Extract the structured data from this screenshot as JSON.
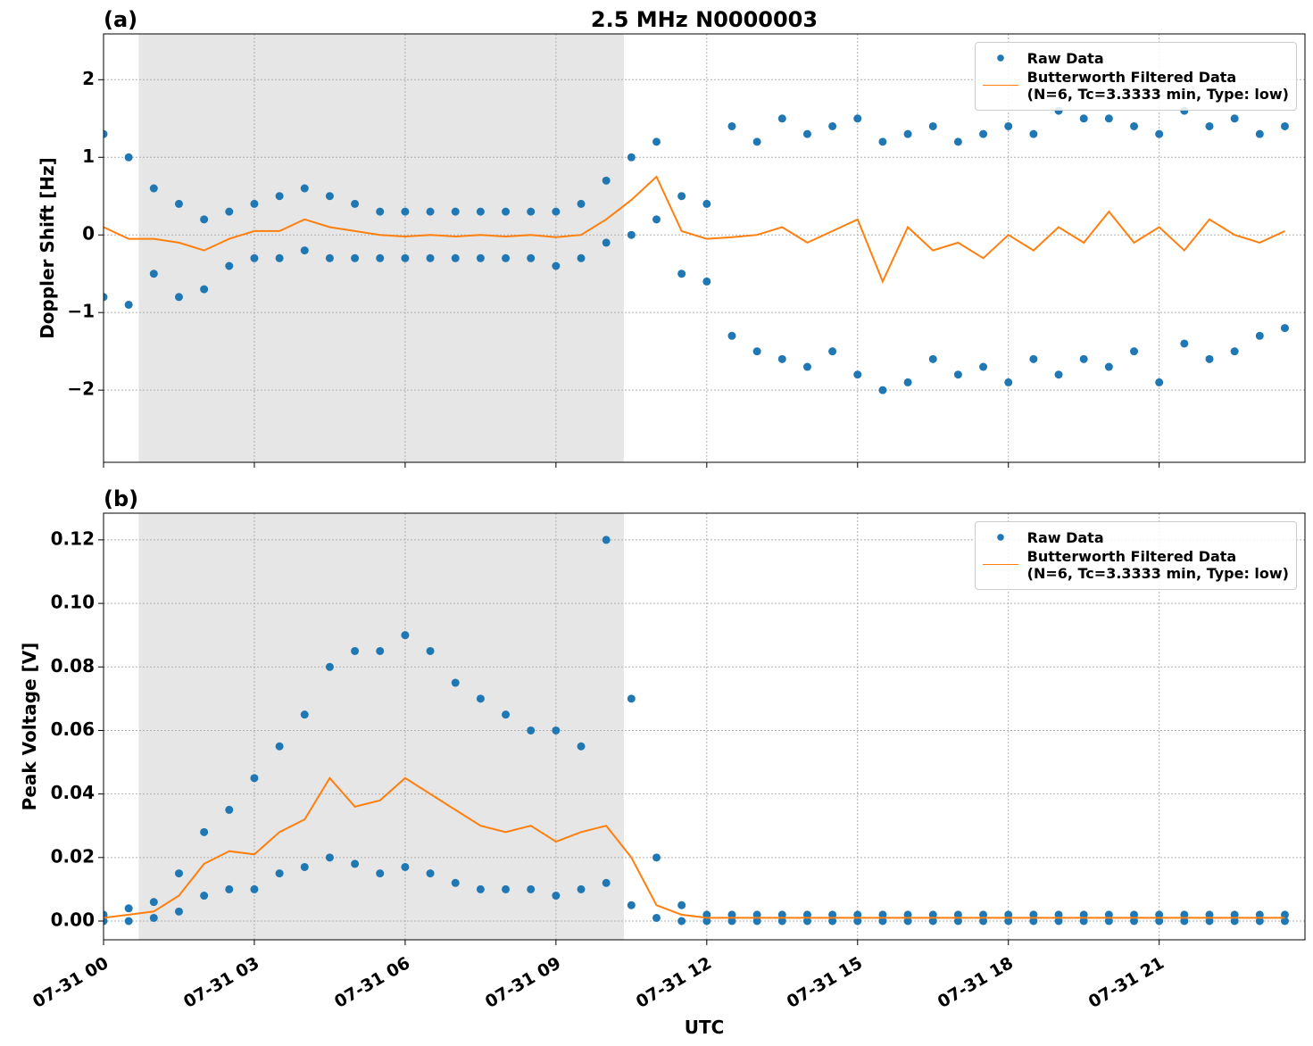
{
  "chart_data": [
    {
      "type": "scatter-line",
      "title": "2.5 MHz N0000003",
      "panel_label": "(a)",
      "y_label": "Doppler Shift [Hz]",
      "xlim": [
        0,
        23.9
      ],
      "ylim": [
        -2.93,
        2.59
      ],
      "xticks": [
        0,
        3,
        6,
        9,
        12,
        15,
        18,
        21
      ],
      "yticks": [
        {
          "value": -2,
          "label": "−2"
        },
        {
          "value": -1,
          "label": "−1"
        },
        0,
        1,
        2
      ],
      "grid": true,
      "shade": [
        0.7,
        10.35
      ],
      "legend": "upper right",
      "series": [
        {
          "name": "Raw Data",
          "color": "#1f77b4",
          "kind": "scatter",
          "x": [
            0,
            0.5,
            1,
            1.5,
            2,
            2.5,
            3,
            3.5,
            4,
            4.5,
            5,
            5.5,
            6,
            6.5,
            7,
            7.5,
            8,
            8.5,
            9,
            9.5,
            10,
            10.5,
            11,
            11.5,
            12,
            12.5,
            13,
            13.5,
            14,
            14.5,
            15,
            15.5,
            16,
            16.5,
            17,
            17.5,
            18,
            18.5,
            19,
            19.5,
            20,
            20.5,
            21,
            21.5,
            22,
            22.5,
            23,
            23.5,
            0,
            0.5,
            1,
            1.5,
            2,
            2.5,
            3,
            3.5,
            4,
            4.5,
            5,
            5.5,
            6,
            6.5,
            7,
            7.5,
            8,
            8.5,
            9,
            9.5,
            10,
            10.5,
            11,
            11.5,
            12,
            12.5,
            13,
            13.5,
            14,
            14.5,
            15,
            15.5,
            16,
            16.5,
            17,
            17.5,
            18,
            18.5,
            19,
            19.5,
            20,
            20.5,
            21,
            21.5,
            22,
            22.5,
            23,
            23.5
          ],
          "values": [
            1.3,
            1.0,
            0.6,
            0.4,
            0.2,
            0.3,
            0.4,
            0.5,
            0.6,
            0.5,
            0.4,
            0.3,
            0.3,
            0.3,
            0.3,
            0.3,
            0.3,
            0.3,
            0.3,
            0.4,
            0.7,
            1.0,
            1.2,
            0.5,
            0.4,
            1.4,
            1.2,
            1.5,
            1.3,
            1.4,
            1.5,
            1.2,
            1.3,
            1.4,
            1.2,
            1.3,
            1.4,
            1.3,
            1.6,
            1.5,
            1.5,
            1.4,
            1.3,
            1.6,
            1.4,
            1.5,
            1.3,
            1.4,
            -0.8,
            -0.9,
            -0.5,
            -0.8,
            -0.7,
            -0.4,
            -0.3,
            -0.3,
            -0.2,
            -0.3,
            -0.3,
            -0.3,
            -0.3,
            -0.3,
            -0.3,
            -0.3,
            -0.3,
            -0.3,
            -0.4,
            -0.3,
            -0.1,
            0.0,
            0.2,
            -0.5,
            -0.6,
            -1.3,
            -1.5,
            -1.6,
            -1.7,
            -1.5,
            -1.8,
            -2.0,
            -1.9,
            -1.6,
            -1.8,
            -1.7,
            -1.9,
            -1.6,
            -1.8,
            -1.6,
            -1.7,
            -1.5,
            -1.9,
            -1.4,
            -1.6,
            -1.5,
            -1.3,
            -1.2
          ]
        },
        {
          "name": "Butterworth Filtered Data\n(N=6, Tc=3.3333 min, Type: low)",
          "color": "#ff7f0e",
          "kind": "line",
          "x": [
            0,
            0.5,
            1,
            1.5,
            2,
            2.5,
            3,
            3.5,
            4,
            4.5,
            5,
            5.5,
            6,
            6.5,
            7,
            7.5,
            8,
            8.5,
            9,
            9.5,
            10,
            10.5,
            11,
            11.5,
            12,
            12.5,
            13,
            13.5,
            14,
            14.5,
            15,
            15.5,
            16,
            16.5,
            17,
            17.5,
            18,
            18.5,
            19,
            19.5,
            20,
            20.5,
            21,
            21.5,
            22,
            22.5,
            23,
            23.5
          ],
          "values": [
            0.1,
            -0.05,
            -0.05,
            -0.1,
            -0.2,
            -0.05,
            0.05,
            0.05,
            0.2,
            0.1,
            0.05,
            0.0,
            -0.02,
            0.0,
            -0.02,
            0.0,
            -0.02,
            0.0,
            -0.03,
            0.0,
            0.2,
            0.45,
            0.75,
            0.05,
            -0.05,
            -0.03,
            0.0,
            0.1,
            -0.1,
            0.05,
            0.2,
            -0.6,
            0.1,
            -0.2,
            -0.1,
            -0.3,
            0.0,
            -0.2,
            0.1,
            -0.1,
            0.3,
            -0.1,
            0.1,
            -0.2,
            0.2,
            0.0,
            -0.1,
            0.05
          ]
        }
      ]
    },
    {
      "type": "scatter-line",
      "panel_label": "(b)",
      "y_label": "Peak Voltage [V]",
      "x_label": "UTC",
      "xlim": [
        0,
        23.9
      ],
      "ylim": [
        -0.0059,
        0.1284
      ],
      "xticks": [
        {
          "value": 0,
          "label": "07-31 00"
        },
        {
          "value": 3,
          "label": "07-31 03"
        },
        {
          "value": 6,
          "label": "07-31 06"
        },
        {
          "value": 9,
          "label": "07-31 09"
        },
        {
          "value": 12,
          "label": "07-31 12"
        },
        {
          "value": 15,
          "label": "07-31 15"
        },
        {
          "value": 18,
          "label": "07-31 18"
        },
        {
          "value": 21,
          "label": "07-31 21"
        }
      ],
      "yticks": [
        {
          "value": 0,
          "label": "0.00"
        },
        {
          "value": 0.02,
          "label": "0.02"
        },
        {
          "value": 0.04,
          "label": "0.04"
        },
        {
          "value": 0.06,
          "label": "0.06"
        },
        {
          "value": 0.08,
          "label": "0.08"
        },
        {
          "value": 0.1,
          "label": "0.10"
        },
        {
          "value": 0.12,
          "label": "0.12"
        }
      ],
      "grid": true,
      "shade": [
        0.7,
        10.35
      ],
      "legend": "upper right",
      "series": [
        {
          "name": "Raw Data",
          "color": "#1f77b4",
          "kind": "scatter",
          "x": [
            0,
            0.5,
            1,
            1.5,
            2,
            2.5,
            3,
            3.5,
            4,
            4.5,
            5,
            5.5,
            6,
            6.5,
            7,
            7.5,
            8,
            8.5,
            9,
            9.5,
            10,
            10.5,
            11,
            11.5,
            12,
            12.5,
            13,
            13.5,
            14,
            14.5,
            15,
            15.5,
            16,
            16.5,
            17,
            17.5,
            18,
            18.5,
            19,
            19.5,
            20,
            20.5,
            21,
            21.5,
            22,
            22.5,
            23,
            23.5,
            0,
            0.5,
            1,
            1.5,
            2,
            2.5,
            3,
            3.5,
            4,
            4.5,
            5,
            5.5,
            6,
            6.5,
            7,
            7.5,
            8,
            8.5,
            9,
            9.5,
            10,
            10.5,
            11,
            11.5,
            12,
            12.5,
            13,
            13.5,
            14,
            14.5,
            15,
            15.5,
            16,
            16.5,
            17,
            17.5,
            18,
            18.5,
            19,
            19.5,
            20,
            20.5,
            21,
            21.5,
            22,
            22.5,
            23,
            23.5
          ],
          "values": [
            0.002,
            0.004,
            0.006,
            0.015,
            0.028,
            0.035,
            0.045,
            0.055,
            0.065,
            0.08,
            0.085,
            0.085,
            0.09,
            0.085,
            0.075,
            0.07,
            0.065,
            0.06,
            0.06,
            0.055,
            0.12,
            0.07,
            0.02,
            0.005,
            0.002,
            0.002,
            0.002,
            0.002,
            0.002,
            0.002,
            0.002,
            0.002,
            0.002,
            0.002,
            0.002,
            0.002,
            0.002,
            0.002,
            0.002,
            0.002,
            0.002,
            0.002,
            0.002,
            0.002,
            0.002,
            0.002,
            0.002,
            0.002,
            0,
            0,
            0.001,
            0.003,
            0.008,
            0.01,
            0.01,
            0.015,
            0.017,
            0.02,
            0.018,
            0.015,
            0.017,
            0.015,
            0.012,
            0.01,
            0.01,
            0.01,
            0.008,
            0.01,
            0.012,
            0.005,
            0.001,
            0,
            0,
            0,
            0,
            0,
            0,
            0,
            0,
            0,
            0,
            0,
            0,
            0,
            0,
            0,
            0,
            0,
            0,
            0,
            0,
            0,
            0,
            0,
            0,
            0
          ]
        },
        {
          "name": "Butterworth Filtered Data\n(N=6, Tc=3.3333 min, Type: low)",
          "color": "#ff7f0e",
          "kind": "line",
          "x": [
            0,
            0.5,
            1,
            1.5,
            2,
            2.5,
            3,
            3.5,
            4,
            4.5,
            5,
            5.5,
            6,
            6.5,
            7,
            7.5,
            8,
            8.5,
            9,
            9.5,
            10,
            10.5,
            11,
            11.5,
            12,
            12.5,
            13,
            13.5,
            14,
            14.5,
            15,
            15.5,
            16,
            16.5,
            17,
            17.5,
            18,
            18.5,
            19,
            19.5,
            20,
            20.5,
            21,
            21.5,
            22,
            22.5,
            23,
            23.5
          ],
          "values": [
            0.001,
            0.002,
            0.003,
            0.008,
            0.018,
            0.022,
            0.021,
            0.028,
            0.032,
            0.045,
            0.036,
            0.038,
            0.045,
            0.04,
            0.035,
            0.03,
            0.028,
            0.03,
            0.025,
            0.028,
            0.03,
            0.02,
            0.005,
            0.002,
            0.001,
            0.001,
            0.001,
            0.001,
            0.001,
            0.001,
            0.001,
            0.001,
            0.001,
            0.001,
            0.001,
            0.001,
            0.001,
            0.001,
            0.001,
            0.001,
            0.001,
            0.001,
            0.001,
            0.001,
            0.001,
            0.001,
            0.001,
            0.001
          ]
        }
      ]
    }
  ]
}
